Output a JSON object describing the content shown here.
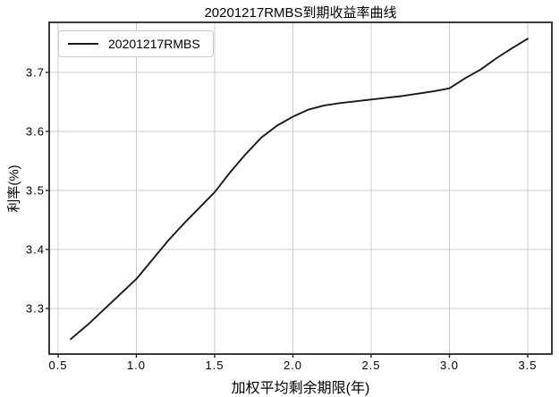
{
  "title": "20201217RMBS到期收益率曲线",
  "legend": {
    "label": "20201217RMBS"
  },
  "colors": {
    "line": "#1a1a1a",
    "grid": "#cccccc",
    "spine": "#262626",
    "background": "#ffffff",
    "legend_border": "#cccccc"
  },
  "chart_data": {
    "type": "line",
    "title": "20201217RMBS到期收益率曲线",
    "xlabel": "加权平均剩余期限(年)",
    "ylabel": "利率(%)",
    "grid": true,
    "legend_position": "upper left",
    "xlim": [
      0.4429,
      3.6543
    ],
    "ylim": [
      3.2227,
      3.7848
    ],
    "xticks": {
      "values": [
        0.5,
        1.0,
        1.5,
        2.0,
        2.5,
        3.0,
        3.5
      ],
      "labels": [
        "0.5",
        "1.0",
        "1.5",
        "2.0",
        "2.5",
        "3.0",
        "3.5"
      ]
    },
    "yticks": {
      "values": [
        3.3,
        3.4,
        3.5,
        3.6,
        3.7
      ],
      "labels": [
        "3.3",
        "3.4",
        "3.5",
        "3.6",
        "3.7"
      ]
    },
    "series": [
      {
        "name": "20201217RMBS",
        "color": "#1a1a1a",
        "x": [
          0.58,
          0.7,
          0.8,
          0.9,
          1.0,
          1.1,
          1.2,
          1.3,
          1.4,
          1.5,
          1.6,
          1.7,
          1.8,
          1.9,
          2.0,
          2.1,
          2.2,
          2.3,
          2.4,
          2.5,
          2.6,
          2.7,
          2.8,
          2.9,
          3.0,
          3.1,
          3.2,
          3.3,
          3.4,
          3.5
        ],
        "y": [
          3.248,
          3.275,
          3.3,
          3.325,
          3.35,
          3.382,
          3.414,
          3.443,
          3.47,
          3.497,
          3.531,
          3.562,
          3.59,
          3.61,
          3.625,
          3.637,
          3.644,
          3.648,
          3.651,
          3.654,
          3.657,
          3.66,
          3.664,
          3.668,
          3.673,
          3.69,
          3.705,
          3.724,
          3.741,
          3.757
        ]
      }
    ]
  }
}
